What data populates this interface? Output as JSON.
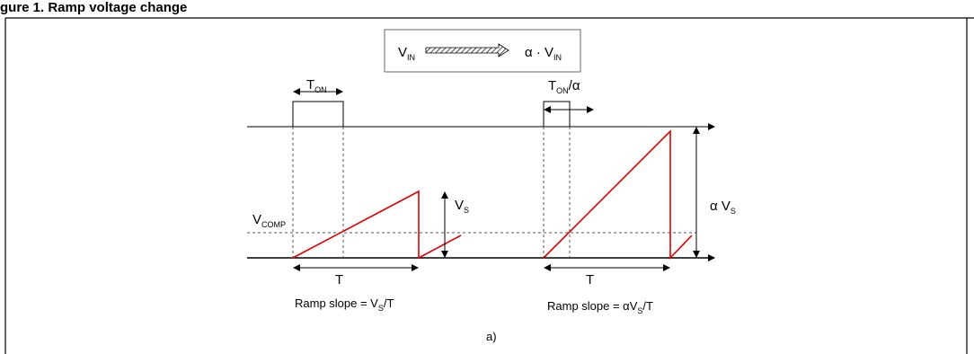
{
  "header": {
    "title": "gure 1. Ramp voltage change"
  },
  "legend_box": {
    "vin_main": "V",
    "vin_sub": "IN",
    "alpha_main": "α · V",
    "alpha_sub": "IN"
  },
  "left": {
    "ton_main": "T",
    "ton_sub": "ON",
    "vcomp_main": "V",
    "vcomp_sub": "COMP",
    "vs_main": "V",
    "vs_sub": "S",
    "period": "T",
    "caption_pre": "Ramp slope = V",
    "caption_sub": "S",
    "caption_post": "/T"
  },
  "right": {
    "ton_main": "T",
    "ton_sub": "ON",
    "ton_post": "/α",
    "avs_main": "α V",
    "avs_sub": "S",
    "period": "T",
    "caption_pre": "Ramp slope = αV",
    "caption_sub": "S",
    "caption_post": "/T"
  },
  "figure_label": "a)",
  "colors": {
    "ramp": "#e00000",
    "axis": "#000000",
    "dashed": "#555555"
  }
}
